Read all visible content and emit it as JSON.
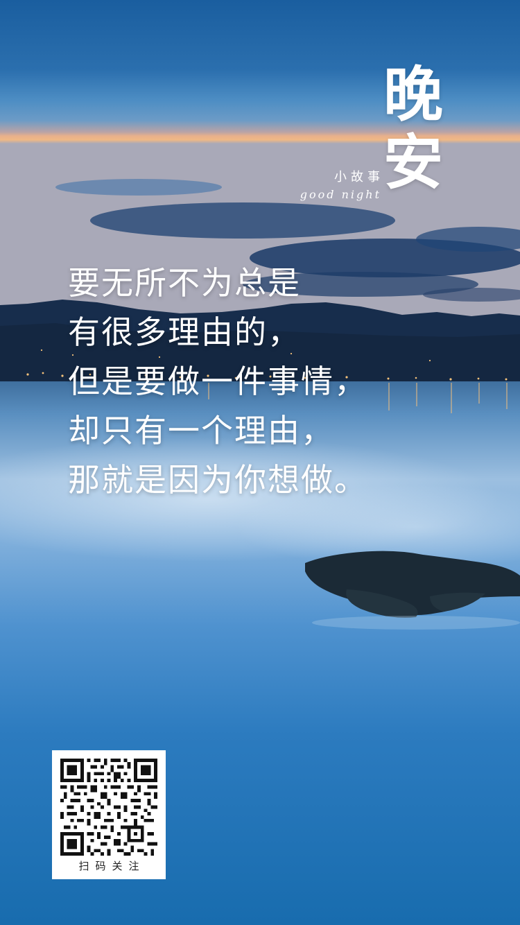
{
  "poster": {
    "title_line1": "晚",
    "title_line2": "安",
    "subtitle_cn": "小故事",
    "subtitle_en": "good night"
  },
  "quote": {
    "lines": [
      "要无所不为总是",
      "有很多理由的，",
      "但是要做一件事情，",
      "却只有一个理由，",
      "那就是因为你想做。"
    ]
  },
  "qr": {
    "caption": "扫码关注"
  },
  "colors": {
    "sky_top": "#1f5f9e",
    "sky_mid": "#3f8bc7",
    "horizon_glow": "#f2b585",
    "mountain": "#18304f",
    "lake": "#2a78b7",
    "lake_deep": "#1a65a4",
    "text": "#ffffff"
  }
}
